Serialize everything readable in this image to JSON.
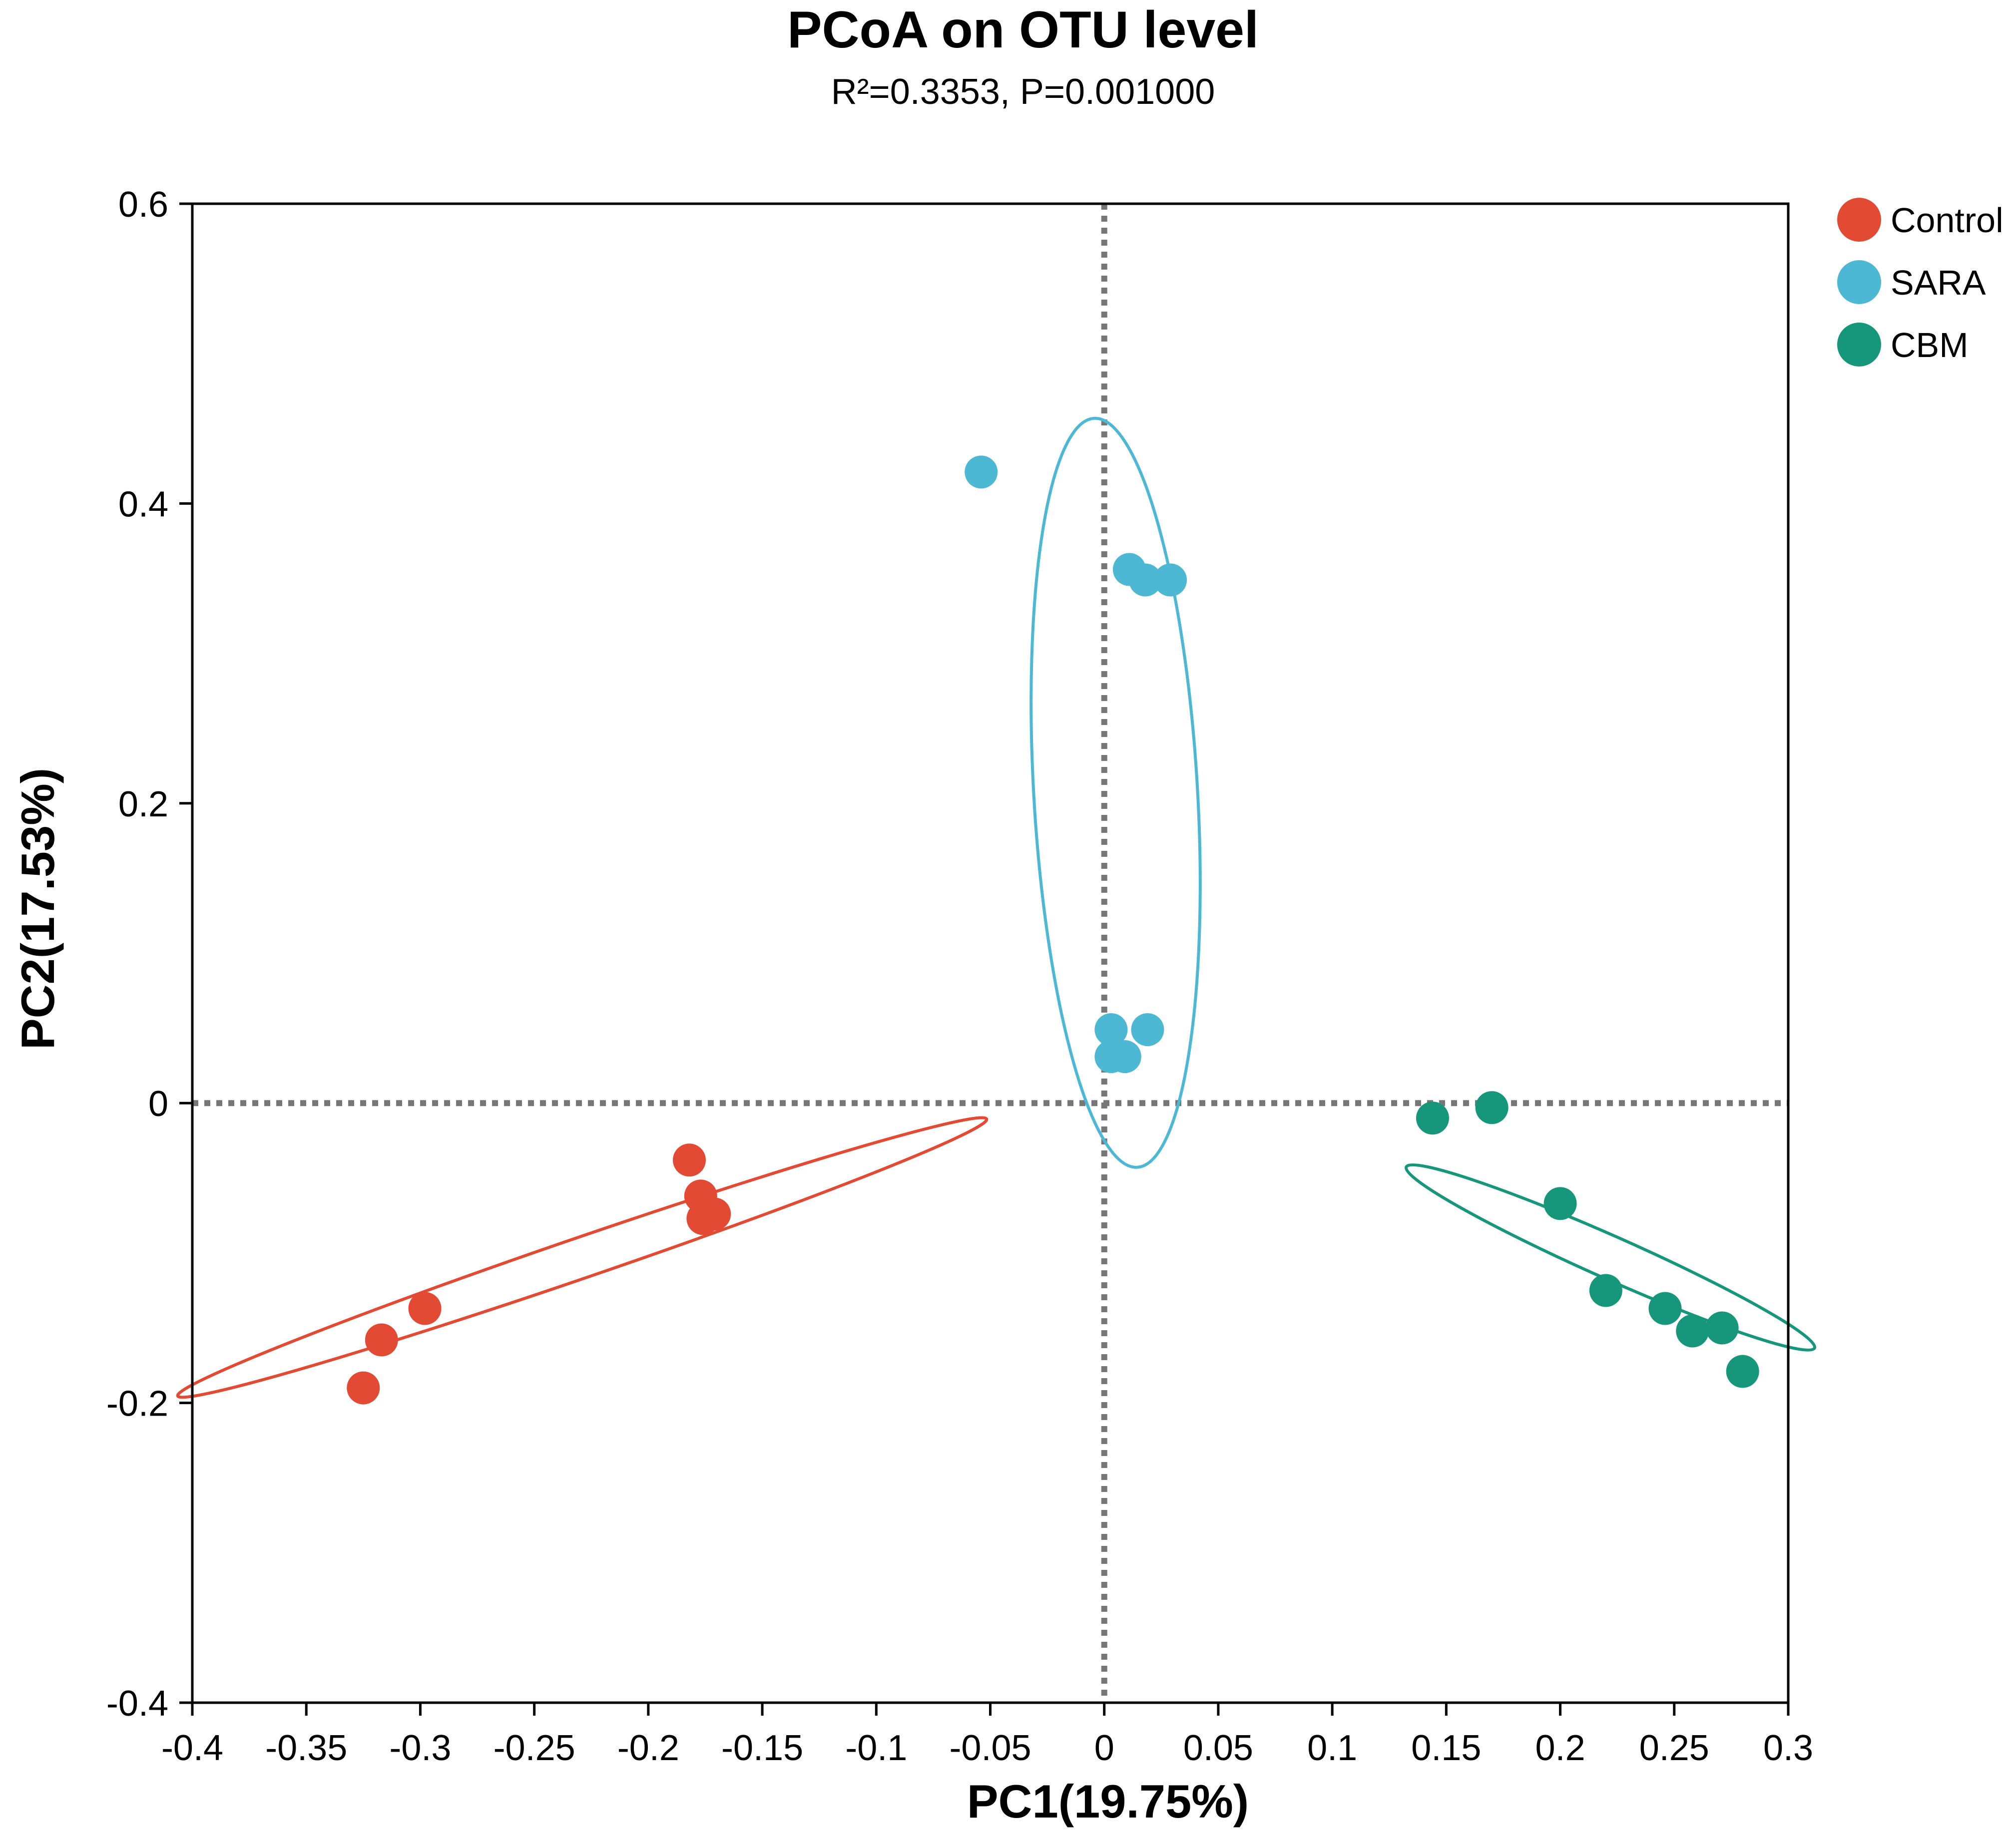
{
  "chart_data": {
    "type": "scatter",
    "title": "PCoA on OTU level",
    "subtitle": "R²=0.3353, P=0.001000",
    "xlabel": "PC1(19.75%)",
    "ylabel": "PC2(17.53%)",
    "xlim": [
      -0.4,
      0.3
    ],
    "ylim": [
      -0.4,
      0.6
    ],
    "x_ticks": [
      -0.4,
      -0.35,
      -0.3,
      -0.25,
      -0.2,
      -0.15,
      -0.1,
      -0.05,
      0,
      0.05,
      0.1,
      0.15,
      0.2,
      0.25,
      0.3
    ],
    "x_tick_labels": [
      "-0.4",
      "-0.35",
      "-0.3",
      "-0.25",
      "-0.2",
      "-0.15",
      "-0.1",
      "-0.05",
      "0",
      "0.05",
      "0.1",
      "0.15",
      "0.2",
      "0.25",
      "0.3"
    ],
    "y_ticks": [
      -0.4,
      -0.2,
      0,
      0.2,
      0.4,
      0.6
    ],
    "y_tick_labels": [
      "-0.4",
      "-0.2",
      "0",
      "0.2",
      "0.4",
      "0.6"
    ],
    "reference_lines": {
      "x": 0,
      "y": 0,
      "style": "dotted"
    },
    "legend_position": "top-right outside",
    "series": [
      {
        "name": "Control",
        "color": "#e34a33",
        "points": [
          {
            "x": -0.182,
            "y": -0.038
          },
          {
            "x": -0.177,
            "y": -0.062
          },
          {
            "x": -0.171,
            "y": -0.074
          },
          {
            "x": -0.176,
            "y": -0.077
          },
          {
            "x": -0.298,
            "y": -0.137
          },
          {
            "x": -0.317,
            "y": -0.158
          },
          {
            "x": -0.325,
            "y": -0.19
          }
        ],
        "ellipse": {
          "cx": -0.229,
          "cy": -0.103,
          "rx": 0.2,
          "ry": 0.012,
          "angle_deg": 27.5
        }
      },
      {
        "name": "SARA",
        "color": "#4cb8d4",
        "points": [
          {
            "x": -0.054,
            "y": 0.421
          },
          {
            "x": 0.011,
            "y": 0.356
          },
          {
            "x": 0.018,
            "y": 0.349
          },
          {
            "x": 0.029,
            "y": 0.349
          },
          {
            "x": 0.003,
            "y": 0.049
          },
          {
            "x": 0.019,
            "y": 0.049
          },
          {
            "x": 0.003,
            "y": 0.031
          },
          {
            "x": 0.009,
            "y": 0.031
          }
        ],
        "ellipse": {
          "cx": 0.005,
          "cy": 0.207,
          "rx": 0.036,
          "ry": 0.249,
          "angle_deg": 5
        }
      },
      {
        "name": "CBM",
        "color": "#16967a",
        "points": [
          {
            "x": 0.144,
            "y": -0.01
          },
          {
            "x": 0.17,
            "y": -0.003
          },
          {
            "x": 0.2,
            "y": -0.067
          },
          {
            "x": 0.22,
            "y": -0.125
          },
          {
            "x": 0.246,
            "y": -0.137
          },
          {
            "x": 0.258,
            "y": -0.152
          },
          {
            "x": 0.271,
            "y": -0.15
          },
          {
            "x": 0.28,
            "y": -0.179
          }
        ],
        "ellipse": {
          "cx": 0.222,
          "cy": -0.103,
          "rx": 0.108,
          "ry": 0.012,
          "angle_deg": -34
        }
      }
    ]
  }
}
